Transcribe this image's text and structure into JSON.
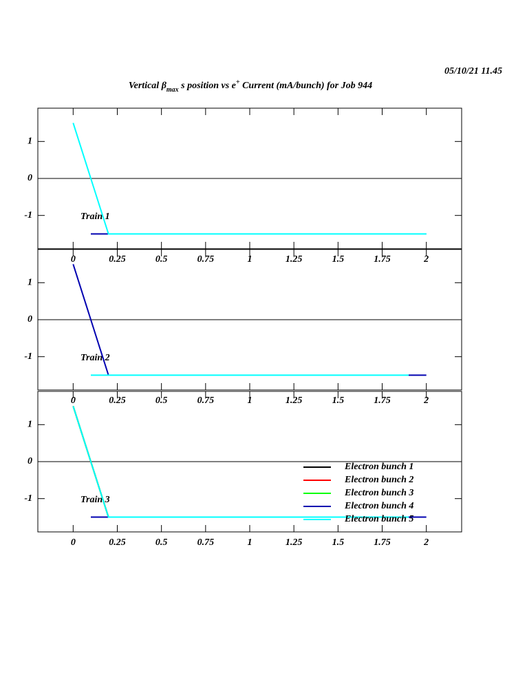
{
  "header": {
    "date": "05/10/21  11.45",
    "title_parts": [
      "Vertical β",
      "max",
      " s position vs e",
      "+",
      " Current (mA/bunch) for Job 944"
    ]
  },
  "chart_data": [
    {
      "type": "line",
      "label": "Train 1",
      "x": [
        0,
        0.1,
        0.2,
        1.9,
        2
      ],
      "xlim": [
        -0.2,
        2.2
      ],
      "xticks": [
        0,
        0.25,
        0.5,
        0.75,
        1,
        1.25,
        1.5,
        1.75,
        2
      ],
      "ylim": [
        -1.9,
        1.9
      ],
      "yticks": [
        1,
        0,
        -1
      ],
      "zero_line": true,
      "series": [
        {
          "color": "#0000b0",
          "values": [
            null,
            -1.5,
            -1.5,
            -1.5,
            -1.5
          ]
        },
        {
          "color": "#00ffff",
          "values": [
            1.5,
            0,
            -1.5,
            -1.5,
            -1.5
          ]
        }
      ]
    },
    {
      "type": "line",
      "label": "Train 2",
      "x": [
        0,
        0.1,
        0.2,
        1.9,
        2
      ],
      "xlim": [
        -0.2,
        2.2
      ],
      "xticks": [
        0,
        0.25,
        0.5,
        0.75,
        1,
        1.25,
        1.5,
        1.75,
        2
      ],
      "ylim": [
        -1.9,
        1.9
      ],
      "yticks": [
        1,
        0,
        -1
      ],
      "zero_line": true,
      "series": [
        {
          "color": "#0000b0",
          "values": [
            1.5,
            0,
            -1.5,
            -1.5,
            -1.5
          ]
        },
        {
          "color": "#00ffff",
          "values": [
            null,
            -1.5,
            -1.5,
            -1.5,
            null
          ]
        }
      ]
    },
    {
      "type": "line",
      "label": "Train 3",
      "x": [
        0,
        0.1,
        0.2,
        1.9,
        2
      ],
      "xlim": [
        -0.2,
        2.2
      ],
      "xticks": [
        0,
        0.25,
        0.5,
        0.75,
        1,
        1.25,
        1.5,
        1.75,
        2
      ],
      "ylim": [
        -1.9,
        1.9
      ],
      "yticks": [
        1,
        0,
        -1
      ],
      "zero_line": true,
      "legend": "lower right",
      "series": [
        {
          "name": "Electron bunch 1",
          "color": "#000000",
          "values": [
            1.5,
            0,
            -1.5,
            -1.5,
            null
          ]
        },
        {
          "name": "Electron bunch 2",
          "color": "#ff0000",
          "values": [
            1.5,
            0,
            -1.5,
            -1.5,
            null
          ]
        },
        {
          "name": "Electron bunch 3",
          "color": "#00ff00",
          "values": [
            1.5,
            0,
            -1.5,
            -1.5,
            null
          ]
        },
        {
          "name": "Electron bunch 4",
          "color": "#0000b0",
          "values": [
            null,
            -1.5,
            -1.5,
            -1.5,
            -1.5
          ]
        },
        {
          "name": "Electron bunch 5",
          "color": "#00ffff",
          "values": [
            1.5,
            0,
            -1.5,
            -1.5,
            null
          ]
        }
      ]
    }
  ]
}
